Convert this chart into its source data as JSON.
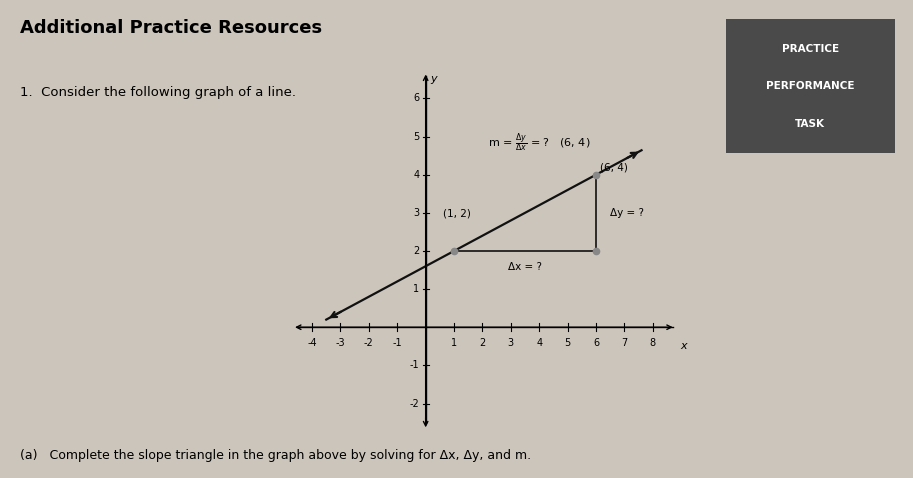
{
  "title": "Additional Practice Resources",
  "subtitle": "1.  Consider the following graph of a line.",
  "footer": "(a)   Complete the slope triangle in the graph above by solving for Δx, Δy, and m.",
  "badge_lines": [
    "PRACTICE",
    "PERFORMANCE",
    "TASK"
  ],
  "badge_bg": "#4a4a4a",
  "badge_fg": "#ffffff",
  "background_color": "#ccc5bb",
  "xlim": [
    -4.7,
    8.8
  ],
  "ylim": [
    -2.7,
    6.7
  ],
  "xticks": [
    -4,
    -3,
    -2,
    -1,
    1,
    2,
    3,
    4,
    5,
    6,
    7,
    8
  ],
  "yticks": [
    -2,
    -1,
    1,
    2,
    3,
    4,
    5,
    6
  ],
  "dot_color": "#777777",
  "line_color": "#111111",
  "triangle_color": "#111111",
  "point1_label": "(1, 2)",
  "point2_label": "(6, 4)",
  "dx_label": "Δx = ?",
  "dy_label": "Δy = ?",
  "m_label_pre": "m = ",
  "m_label_post": " = ?"
}
